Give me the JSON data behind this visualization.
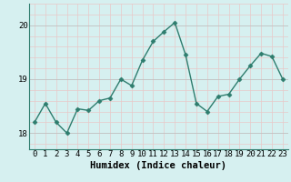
{
  "x": [
    0,
    1,
    2,
    3,
    4,
    5,
    6,
    7,
    8,
    9,
    10,
    11,
    12,
    13,
    14,
    15,
    16,
    17,
    18,
    19,
    20,
    21,
    22,
    23
  ],
  "y": [
    18.2,
    18.55,
    18.2,
    18.0,
    18.45,
    18.42,
    18.6,
    18.65,
    19.0,
    18.88,
    19.35,
    19.7,
    19.88,
    20.05,
    19.45,
    18.55,
    18.4,
    18.68,
    18.72,
    19.0,
    19.25,
    19.48,
    19.42,
    19.0
  ],
  "line_color": "#2e7d6e",
  "marker": "D",
  "markersize": 2.5,
  "linewidth": 1.0,
  "bg_color": "#d6f0f0",
  "grid_major_color": "#c0c0c0",
  "grid_minor_color": "#e8c8c8",
  "xlabel": "Humidex (Indice chaleur)",
  "xlabel_fontsize": 7.5,
  "yticks": [
    18,
    19,
    20
  ],
  "ylim": [
    17.7,
    20.4
  ],
  "xlim": [
    -0.5,
    23.5
  ],
  "xtick_labels": [
    "0",
    "1",
    "2",
    "3",
    "4",
    "5",
    "6",
    "7",
    "8",
    "9",
    "10",
    "11",
    "12",
    "13",
    "14",
    "15",
    "16",
    "17",
    "18",
    "19",
    "20",
    "21",
    "22",
    "23"
  ],
  "tick_fontsize": 6.5
}
